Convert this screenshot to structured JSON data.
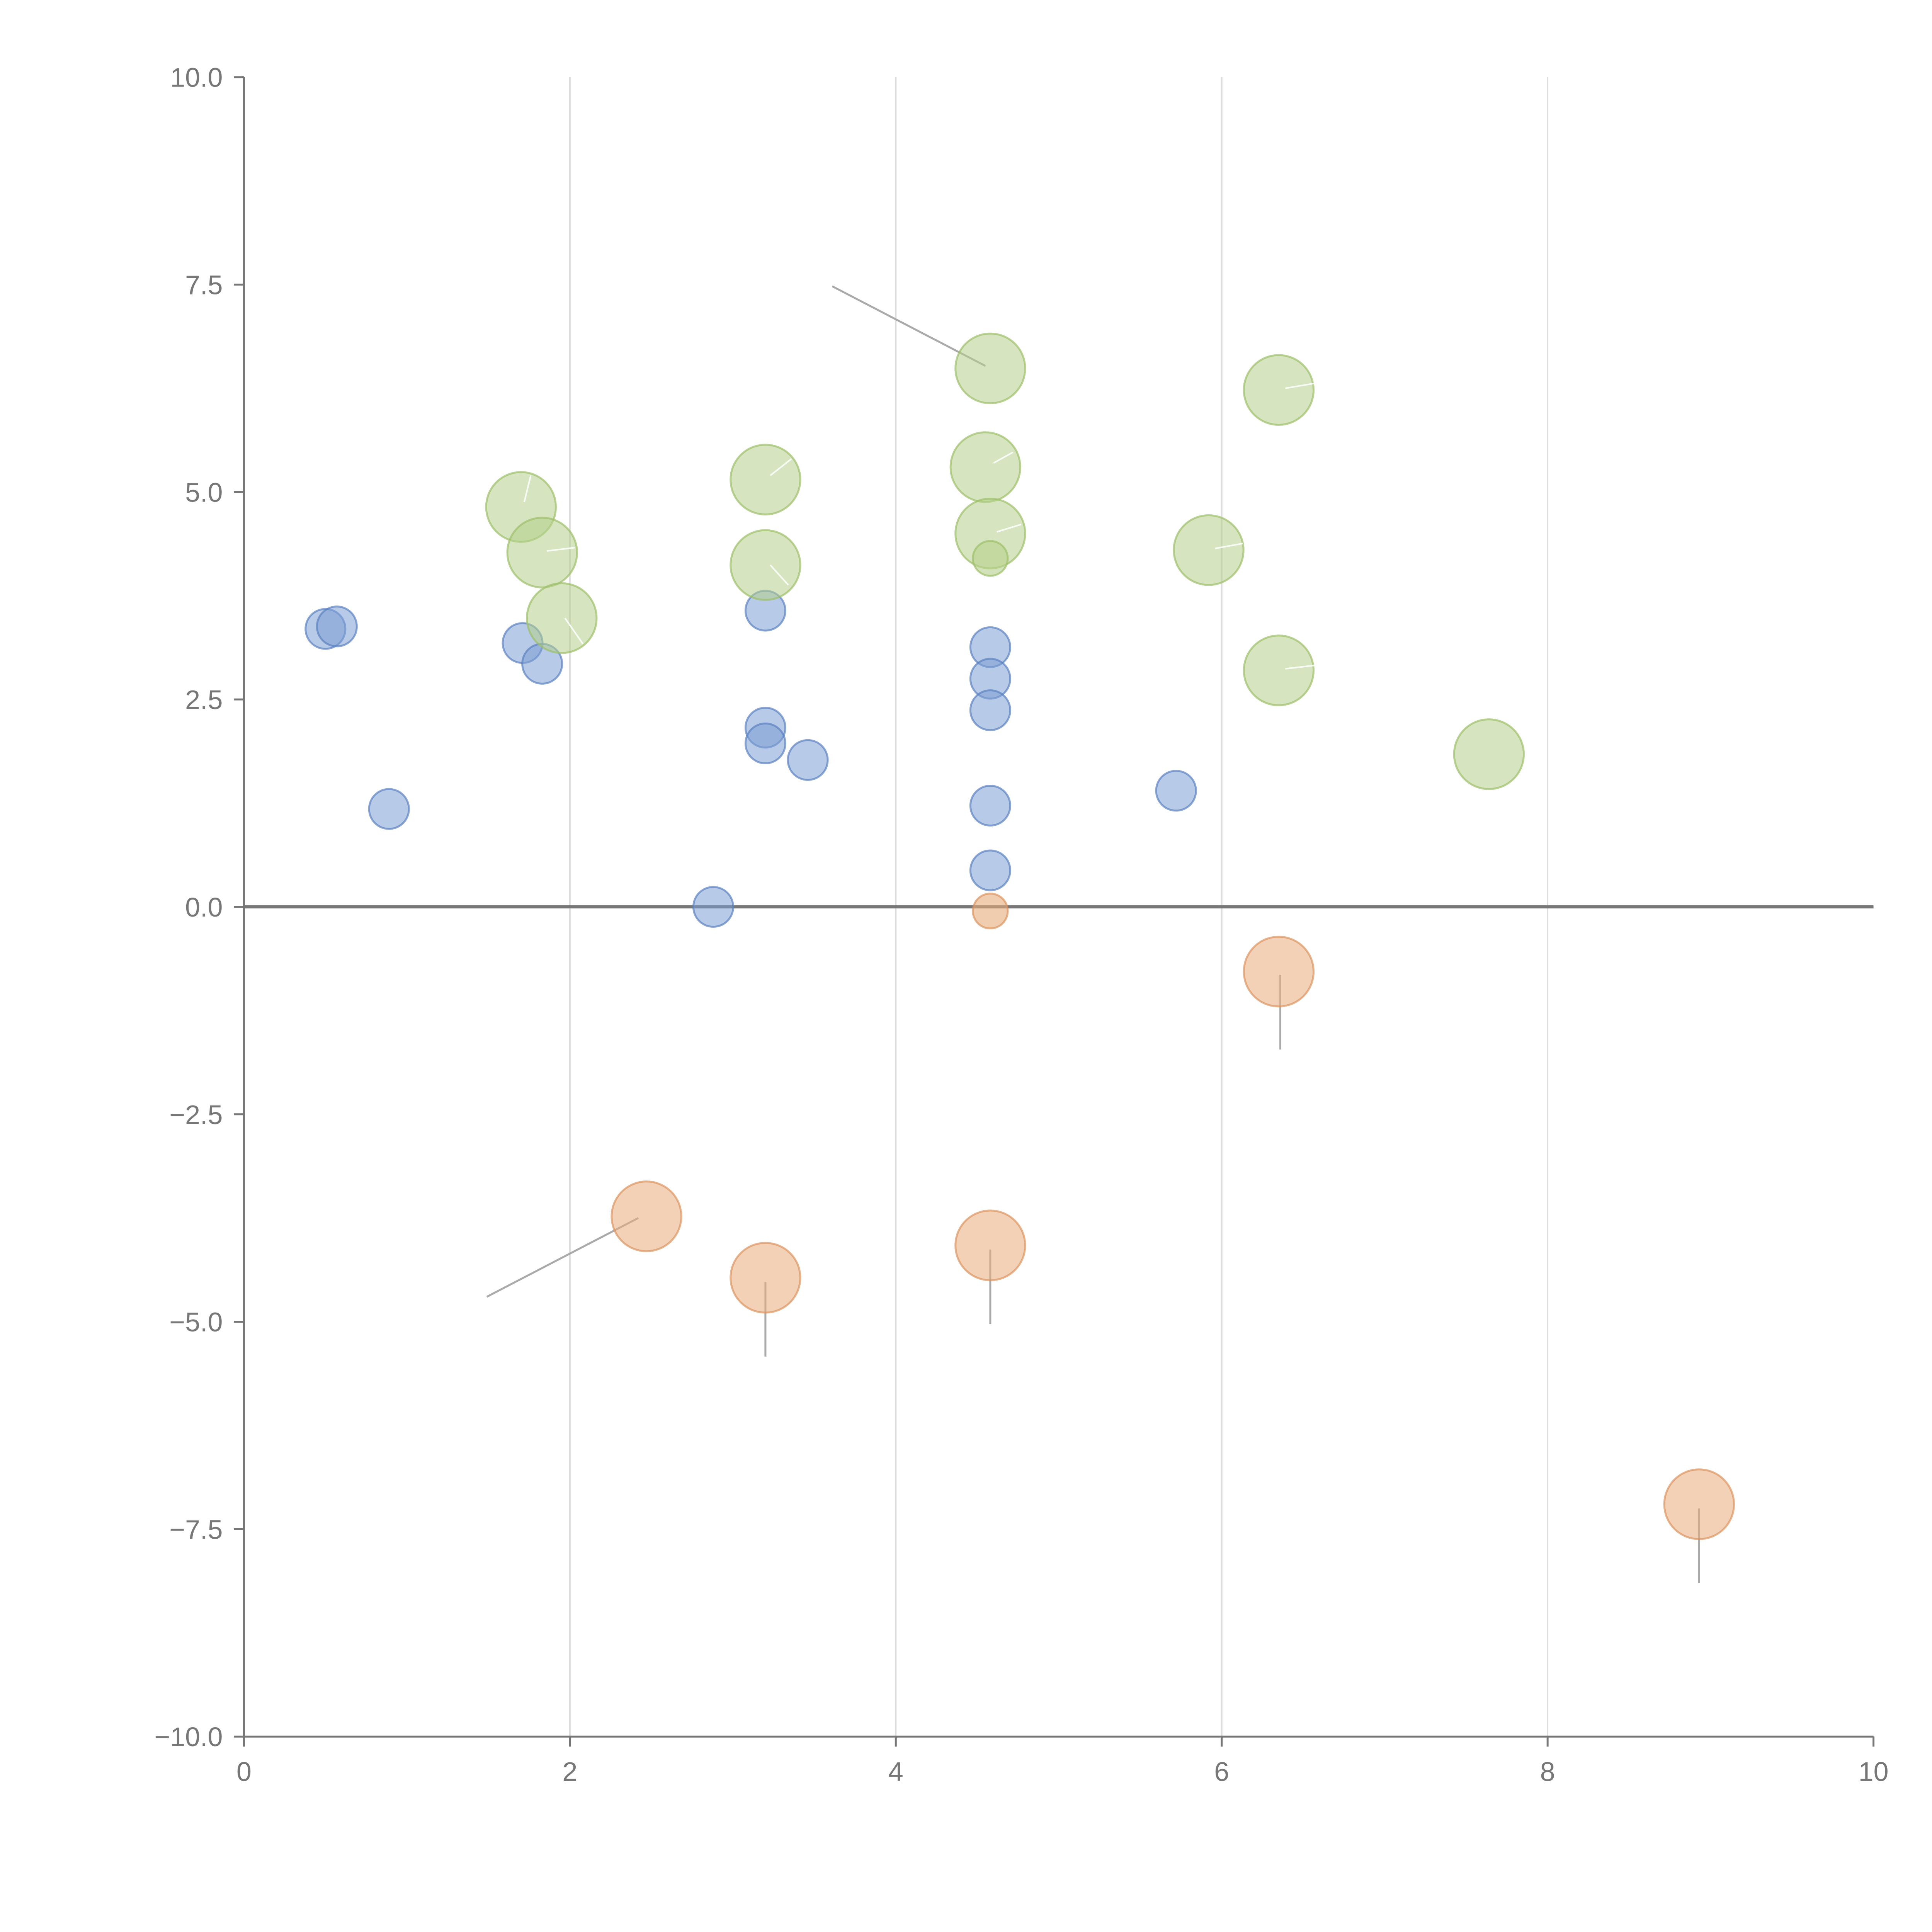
{
  "chart_data": {
    "type": "scatter",
    "title": "",
    "xlabel": "",
    "ylabel": "",
    "xlim": [
      0,
      10
    ],
    "ylim": [
      -10,
      10
    ],
    "x_ticks": [
      0,
      2,
      4,
      6,
      8,
      10
    ],
    "y_ticks": [
      10,
      7.5,
      5,
      2.5,
      0,
      -2.5,
      -5,
      -7.5,
      -10
    ],
    "x_tick_labels": [
      "0",
      "2",
      "4",
      "6",
      "8",
      "10"
    ],
    "y_tick_labels": [
      "10.0",
      "7.5",
      "5.0",
      "2.5",
      "0.0",
      "−2.5",
      "−5.0",
      "−7.5",
      "−10.0"
    ],
    "grid": "vertical",
    "zero_line": true,
    "series": [
      {
        "name": "blue",
        "color": "#7b9fd4",
        "stroke": "#5b82c0",
        "size": "small",
        "points": [
          [
            0.5,
            3.35
          ],
          [
            0.57,
            3.38
          ],
          [
            0.89,
            1.18
          ],
          [
            1.71,
            3.18
          ],
          [
            1.83,
            2.93
          ],
          [
            2.88,
            0.0
          ],
          [
            3.2,
            3.57
          ],
          [
            3.2,
            2.16
          ],
          [
            3.2,
            1.97
          ],
          [
            3.46,
            1.77
          ],
          [
            4.58,
            3.13
          ],
          [
            4.58,
            2.75
          ],
          [
            4.58,
            2.37
          ],
          [
            4.58,
            1.22
          ],
          [
            4.58,
            0.44
          ],
          [
            5.72,
            1.4
          ]
        ]
      },
      {
        "name": "green",
        "color": "#b5d08a",
        "stroke": "#9cbf6a",
        "size": "large",
        "points": [
          [
            1.7,
            4.82
          ],
          [
            1.83,
            4.27
          ],
          [
            1.95,
            3.48
          ],
          [
            3.2,
            5.15
          ],
          [
            3.2,
            4.12
          ],
          [
            4.58,
            6.49
          ],
          [
            4.55,
            5.3
          ],
          [
            4.58,
            4.5
          ],
          [
            5.92,
            4.3
          ],
          [
            6.35,
            6.23
          ],
          [
            6.35,
            2.85
          ],
          [
            7.64,
            1.84
          ]
        ],
        "small_points": [
          [
            4.58,
            4.2
          ]
        ]
      },
      {
        "name": "orange",
        "color": "#e8ac7c",
        "stroke": "#dc9460",
        "size": "large",
        "points": [
          [
            6.35,
            -0.78
          ],
          [
            2.47,
            -3.73
          ],
          [
            3.2,
            -4.47
          ],
          [
            4.58,
            -4.08
          ],
          [
            8.93,
            -7.2
          ]
        ],
        "small_points": [
          [
            4.58,
            -0.05
          ]
        ]
      }
    ]
  }
}
